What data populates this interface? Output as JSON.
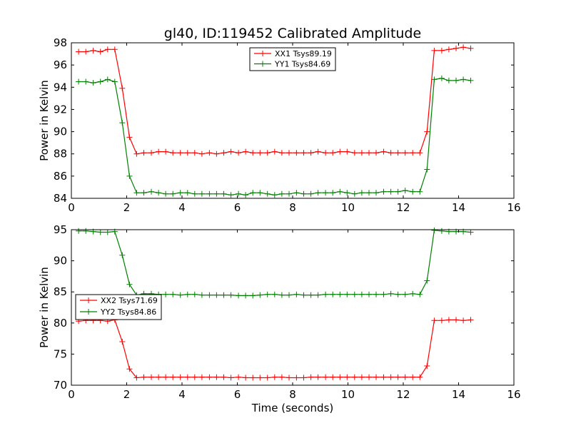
{
  "chart_data": [
    {
      "type": "line",
      "title": "gl40, ID:119452 Calibrated Amplitude",
      "xlabel": "",
      "ylabel": "Power in Kelvin",
      "xlim": [
        0,
        16
      ],
      "ylim": [
        84,
        98
      ],
      "xticks": [
        0,
        2,
        4,
        6,
        8,
        10,
        12,
        14,
        16
      ],
      "yticks": [
        84,
        86,
        88,
        90,
        92,
        94,
        96,
        98
      ],
      "grid": false,
      "legend_position": "top-center",
      "x": [
        0.26,
        0.52,
        0.79,
        1.05,
        1.31,
        1.57,
        1.84,
        2.1,
        2.36,
        2.62,
        2.89,
        3.15,
        3.41,
        3.67,
        3.94,
        4.2,
        4.46,
        4.72,
        4.99,
        5.25,
        5.51,
        5.77,
        6.04,
        6.3,
        6.56,
        6.82,
        7.09,
        7.35,
        7.61,
        7.87,
        8.14,
        8.4,
        8.66,
        8.92,
        9.19,
        9.45,
        9.71,
        9.97,
        10.24,
        10.5,
        10.76,
        11.02,
        11.29,
        11.55,
        11.81,
        12.07,
        12.34,
        12.6,
        12.86,
        13.12,
        13.39,
        13.65,
        13.91,
        14.17,
        14.44
      ],
      "series": [
        {
          "name": "XX1 Tsys89.19",
          "color": "#ff0000",
          "values": [
            97.2,
            97.2,
            97.3,
            97.2,
            97.4,
            97.4,
            93.9,
            89.5,
            88.0,
            88.1,
            88.1,
            88.2,
            88.2,
            88.1,
            88.1,
            88.1,
            88.1,
            88.0,
            88.1,
            88.0,
            88.1,
            88.2,
            88.1,
            88.2,
            88.1,
            88.1,
            88.1,
            88.2,
            88.1,
            88.1,
            88.1,
            88.1,
            88.1,
            88.2,
            88.1,
            88.1,
            88.2,
            88.2,
            88.1,
            88.1,
            88.1,
            88.1,
            88.2,
            88.1,
            88.1,
            88.1,
            88.1,
            88.1,
            90.0,
            97.3,
            97.3,
            97.4,
            97.5,
            97.6,
            97.5
          ]
        },
        {
          "name": "YY1 Tsys84.69",
          "color": "#008000",
          "values": [
            94.5,
            94.5,
            94.4,
            94.5,
            94.7,
            94.5,
            90.8,
            86.0,
            84.5,
            84.5,
            84.6,
            84.5,
            84.4,
            84.4,
            84.5,
            84.5,
            84.4,
            84.4,
            84.4,
            84.4,
            84.4,
            84.3,
            84.4,
            84.3,
            84.5,
            84.5,
            84.4,
            84.3,
            84.4,
            84.4,
            84.5,
            84.4,
            84.4,
            84.5,
            84.5,
            84.5,
            84.6,
            84.5,
            84.4,
            84.5,
            84.5,
            84.5,
            84.6,
            84.6,
            84.6,
            84.7,
            84.6,
            84.6,
            86.6,
            94.7,
            94.8,
            94.6,
            94.6,
            94.7,
            94.6
          ]
        }
      ]
    },
    {
      "type": "line",
      "title": "",
      "xlabel": "Time (seconds)",
      "ylabel": "Power in Kelvin",
      "xlim": [
        0,
        16
      ],
      "ylim": [
        70,
        95
      ],
      "xticks": [
        0,
        2,
        4,
        6,
        8,
        10,
        12,
        14,
        16
      ],
      "yticks": [
        70,
        75,
        80,
        85,
        90,
        95
      ],
      "grid": false,
      "legend_position": "center-left",
      "x": [
        0.26,
        0.52,
        0.79,
        1.05,
        1.31,
        1.57,
        1.84,
        2.1,
        2.36,
        2.62,
        2.89,
        3.15,
        3.41,
        3.67,
        3.94,
        4.2,
        4.46,
        4.72,
        4.99,
        5.25,
        5.51,
        5.77,
        6.04,
        6.3,
        6.56,
        6.82,
        7.09,
        7.35,
        7.61,
        7.87,
        8.14,
        8.4,
        8.66,
        8.92,
        9.19,
        9.45,
        9.71,
        9.97,
        10.24,
        10.5,
        10.76,
        11.02,
        11.29,
        11.55,
        11.81,
        12.07,
        12.34,
        12.6,
        12.86,
        13.12,
        13.39,
        13.65,
        13.91,
        14.17,
        14.44
      ],
      "series": [
        {
          "name": "XX2 Tsys71.69",
          "color": "#ff0000",
          "values": [
            80.3,
            80.4,
            80.4,
            80.4,
            80.3,
            80.5,
            77.0,
            72.6,
            71.2,
            71.3,
            71.3,
            71.3,
            71.3,
            71.3,
            71.3,
            71.3,
            71.3,
            71.3,
            71.3,
            71.3,
            71.3,
            71.2,
            71.3,
            71.2,
            71.2,
            71.2,
            71.2,
            71.3,
            71.3,
            71.2,
            71.2,
            71.2,
            71.3,
            71.3,
            71.3,
            71.3,
            71.3,
            71.3,
            71.3,
            71.3,
            71.3,
            71.3,
            71.3,
            71.3,
            71.3,
            71.3,
            71.3,
            71.3,
            73.1,
            80.4,
            80.4,
            80.5,
            80.5,
            80.4,
            80.5
          ]
        },
        {
          "name": "YY2 Tsys84.86",
          "color": "#008000",
          "values": [
            94.8,
            94.8,
            94.7,
            94.6,
            94.6,
            94.7,
            90.9,
            86.2,
            84.5,
            84.7,
            84.7,
            84.6,
            84.6,
            84.6,
            84.5,
            84.6,
            84.6,
            84.5,
            84.5,
            84.5,
            84.5,
            84.5,
            84.4,
            84.4,
            84.4,
            84.5,
            84.6,
            84.6,
            84.5,
            84.5,
            84.6,
            84.5,
            84.5,
            84.5,
            84.6,
            84.6,
            84.6,
            84.6,
            84.6,
            84.6,
            84.6,
            84.6,
            84.6,
            84.7,
            84.6,
            84.6,
            84.7,
            84.6,
            86.8,
            94.9,
            94.8,
            94.7,
            94.7,
            94.7,
            94.6
          ]
        }
      ]
    }
  ]
}
